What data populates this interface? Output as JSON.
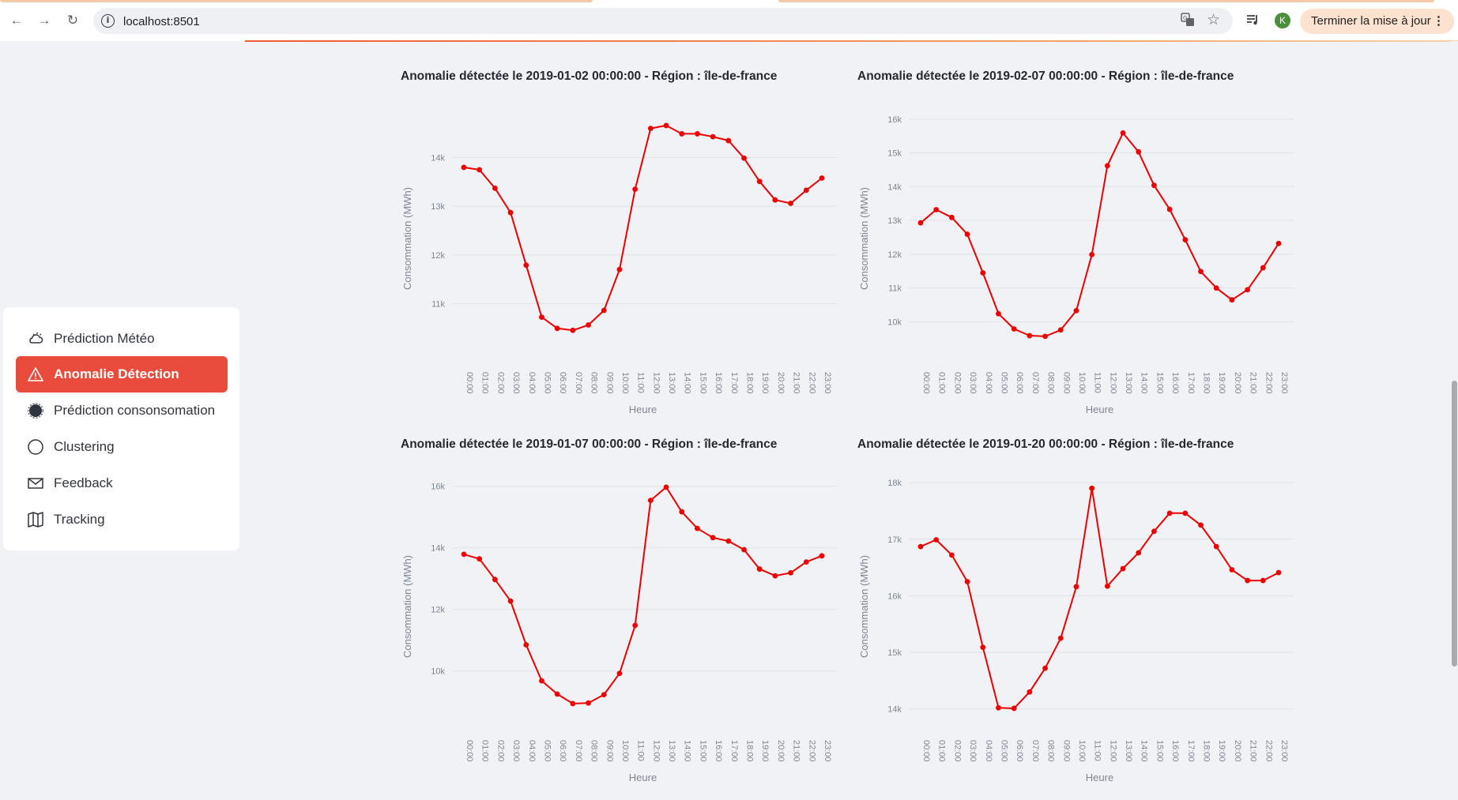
{
  "browser": {
    "url": "localhost:8501",
    "update_label": "Terminer la mise à jour",
    "avatar_letter": "K",
    "icons": [
      "back-icon",
      "forward-icon",
      "reload-icon",
      "site-info-icon",
      "translate-icon",
      "bookmark-star-icon",
      "media-control-icon",
      "menu-dots-icon"
    ]
  },
  "sidebar": {
    "items": [
      {
        "label": "Prédiction Météo",
        "icon": "weather-icon",
        "active": false
      },
      {
        "label": "Anomalie Détection",
        "icon": "warning-icon",
        "active": true
      },
      {
        "label": "Prédiction consonsomation",
        "icon": "consumption-icon",
        "active": false
      },
      {
        "label": "Clustering",
        "icon": "circle-icon",
        "active": false
      },
      {
        "label": "Feedback",
        "icon": "envelope-icon",
        "active": false
      },
      {
        "label": "Tracking",
        "icon": "map-icon",
        "active": false
      }
    ]
  },
  "colors": {
    "accent": "#e94c3c",
    "series": "#ee0000",
    "background": "#f0f2f6",
    "grid": "#dfe3ea"
  },
  "chart_data": [
    {
      "type": "line",
      "title": "Anomalie détectée le 2019-01-02 00:00:00 - Région : île-de-france",
      "xlabel": "Heure",
      "ylabel": "Consommation (MWh)",
      "x": [
        "00:00",
        "01:00",
        "02:00",
        "03:00",
        "04:00",
        "05:00",
        "06:00",
        "07:00",
        "08:00",
        "09:00",
        "10:00",
        "11:00",
        "12:00",
        "13:00",
        "14:00",
        "15:00",
        "16:00",
        "17:00",
        "18:00",
        "19:00",
        "20:00",
        "21:00",
        "22:00",
        "23:00"
      ],
      "y": [
        13800,
        13750,
        13370,
        12870,
        11790,
        10720,
        10490,
        10450,
        10560,
        10860,
        11700,
        13350,
        14600,
        14660,
        14490,
        14490,
        14430,
        14350,
        13990,
        13510,
        13130,
        13060,
        13330,
        13580
      ],
      "ylim": [
        10000,
        15000
      ],
      "yticks": [
        11000,
        12000,
        13000,
        14000
      ],
      "ytick_labels": [
        "11k",
        "12k",
        "13k",
        "14k"
      ],
      "grid": true,
      "legend": false
    },
    {
      "type": "line",
      "title": "Anomalie détectée le 2019-02-07 00:00:00 - Région : île-de-france",
      "xlabel": "Heure",
      "ylabel": "Consommation (MWh)",
      "x": [
        "00:00",
        "01:00",
        "02:00",
        "03:00",
        "04:00",
        "05:00",
        "06:00",
        "07:00",
        "08:00",
        "09:00",
        "10:00",
        "11:00",
        "12:00",
        "13:00",
        "14:00",
        "15:00",
        "16:00",
        "17:00",
        "18:00",
        "19:00",
        "20:00",
        "21:00",
        "22:00",
        "23:00"
      ],
      "y": [
        12930,
        13320,
        13090,
        12590,
        11450,
        10240,
        9790,
        9590,
        9570,
        9760,
        10330,
        11990,
        14620,
        15590,
        15030,
        14040,
        13330,
        12430,
        11490,
        11000,
        10650,
        10950,
        11600,
        12320
      ],
      "ylim": [
        9100,
        16300
      ],
      "yticks": [
        10000,
        11000,
        12000,
        13000,
        14000,
        15000,
        16000
      ],
      "ytick_labels": [
        "10k",
        "11k",
        "12k",
        "13k",
        "14k",
        "15k",
        "16k"
      ],
      "grid": true,
      "legend": false
    },
    {
      "type": "line",
      "title": "Anomalie détectée le 2019-01-07 00:00:00 - Région : île-de-france",
      "xlabel": "Heure",
      "ylabel": "Consommation (MWh)",
      "x": [
        "00:00",
        "01:00",
        "02:00",
        "03:00",
        "04:00",
        "05:00",
        "06:00",
        "07:00",
        "08:00",
        "09:00",
        "10:00",
        "11:00",
        "12:00",
        "13:00",
        "14:00",
        "15:00",
        "16:00",
        "17:00",
        "18:00",
        "19:00",
        "20:00",
        "21:00",
        "22:00",
        "23:00"
      ],
      "y": [
        13790,
        13640,
        12970,
        12270,
        10850,
        9680,
        9250,
        8940,
        8960,
        9230,
        9920,
        11480,
        15540,
        15970,
        15170,
        14630,
        14330,
        14220,
        13940,
        13310,
        13090,
        13190,
        13540,
        13740
      ],
      "ylim": [
        8400,
        16300
      ],
      "yticks": [
        10000,
        12000,
        14000,
        16000
      ],
      "ytick_labels": [
        "10k",
        "12k",
        "14k",
        "16k"
      ],
      "grid": true,
      "legend": false
    },
    {
      "type": "line",
      "title": "Anomalie détectée le 2019-01-20 00:00:00 - Région : île-de-france",
      "xlabel": "Heure",
      "ylabel": "Consommation (MWh)",
      "x": [
        "00:00",
        "01:00",
        "02:00",
        "03:00",
        "04:00",
        "05:00",
        "06:00",
        "07:00",
        "08:00",
        "09:00",
        "10:00",
        "11:00",
        "12:00",
        "13:00",
        "14:00",
        "15:00",
        "16:00",
        "17:00",
        "18:00",
        "19:00",
        "20:00",
        "21:00",
        "22:00",
        "23:00"
      ],
      "y": [
        16870,
        16990,
        16720,
        16250,
        15090,
        14020,
        14010,
        14300,
        14720,
        15250,
        16160,
        17900,
        16170,
        16480,
        16760,
        17140,
        17460,
        17460,
        17250,
        16870,
        16460,
        16270,
        16270,
        16410
      ],
      "ylim": [
        13800,
        18100
      ],
      "yticks": [
        14000,
        15000,
        16000,
        17000,
        18000
      ],
      "ytick_labels": [
        "14k",
        "15k",
        "16k",
        "17k",
        "18k"
      ],
      "grid": true,
      "legend": false
    }
  ]
}
